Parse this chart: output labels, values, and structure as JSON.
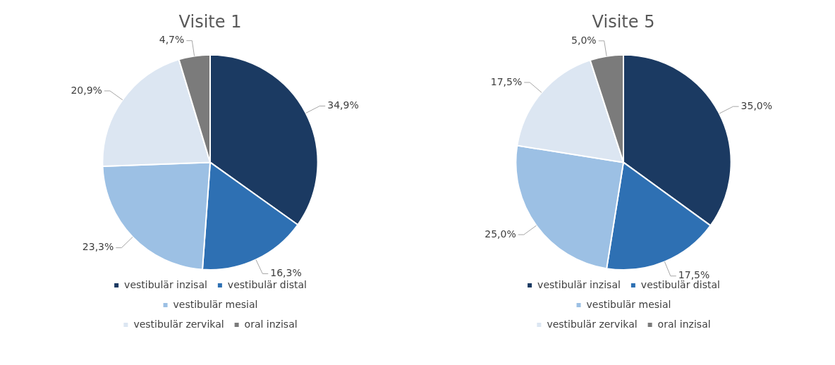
{
  "chart_data": [
    {
      "type": "pie",
      "title": "Visite 1",
      "categories": [
        "vestibulär inzisal",
        "vestibulär distal",
        "vestibulär mesial",
        "vestibulär zervikal",
        "oral inzisal"
      ],
      "values": [
        34.9,
        16.3,
        23.3,
        20.9,
        4.7
      ],
      "value_labels": [
        "34,9%",
        "16,3%",
        "23,3%",
        "20,9%",
        "4,7%"
      ],
      "colors": [
        "#1b3a62",
        "#2e70b3",
        "#9cc0e4",
        "#dce6f2",
        "#7b7b7b"
      ],
      "legend": "bottom"
    },
    {
      "type": "pie",
      "title": "Visite 5",
      "categories": [
        "vestibulär inzisal",
        "vestibulär distal",
        "vestibulär mesial",
        "vestibulär zervikal",
        "oral inzisal"
      ],
      "values": [
        35.0,
        17.5,
        25.0,
        17.5,
        5.0
      ],
      "value_labels": [
        "35,0%",
        "17,5%",
        "25,0%",
        "17,5%",
        "5,0%"
      ],
      "colors": [
        "#1b3a62",
        "#2e70b3",
        "#9cc0e4",
        "#dce6f2",
        "#7b7b7b"
      ],
      "legend": "bottom"
    }
  ]
}
